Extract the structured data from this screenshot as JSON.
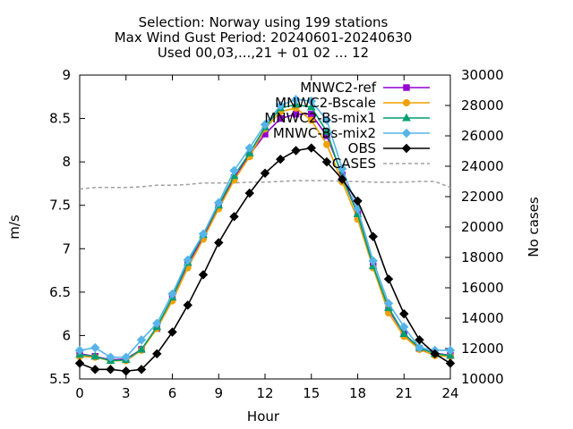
{
  "chart_data": {
    "type": "line",
    "title": [
      "Selection: Norway using   199 stations",
      "Max Wind Gust   Period: 20240601-20240630",
      "Used 00,03,...,21 + 01 02 ... 12"
    ],
    "xlabel": "Hour",
    "ylabel": "m/s",
    "y2label": "No cases",
    "xlim": [
      0,
      24
    ],
    "ylim": [
      5.5,
      9
    ],
    "y2lim": [
      10000,
      30000
    ],
    "xticks": [
      0,
      3,
      6,
      9,
      12,
      15,
      18,
      21,
      24
    ],
    "yticks": [
      5.5,
      6,
      6.5,
      7,
      7.5,
      8,
      8.5,
      9
    ],
    "y2ticks": [
      10000,
      12000,
      14000,
      16000,
      18000,
      20000,
      22000,
      24000,
      26000,
      28000,
      30000
    ],
    "x": [
      0,
      1,
      2,
      3,
      4,
      5,
      6,
      7,
      8,
      9,
      10,
      11,
      12,
      13,
      14,
      15,
      16,
      17,
      18,
      19,
      20,
      21,
      22,
      23,
      24
    ],
    "legend_position": "top-right",
    "grid": false,
    "series": [
      {
        "name": "MNWC2-ref",
        "color": "#9400d3",
        "marker": "square",
        "axis": "y",
        "values": [
          5.79,
          5.76,
          5.72,
          5.73,
          5.84,
          6.08,
          6.44,
          6.82,
          7.14,
          7.48,
          7.82,
          8.08,
          8.32,
          8.5,
          8.55,
          8.55,
          8.3,
          7.85,
          7.4,
          6.8,
          6.3,
          6.02,
          5.85,
          5.8,
          5.77
        ]
      },
      {
        "name": "MNWC2-Bscale",
        "color": "#f0a000",
        "marker": "circle",
        "axis": "y",
        "values": [
          5.76,
          5.75,
          5.71,
          5.71,
          5.83,
          6.08,
          6.4,
          6.78,
          7.11,
          7.46,
          7.79,
          8.06,
          8.38,
          8.58,
          8.62,
          8.48,
          8.2,
          7.77,
          7.34,
          6.78,
          6.26,
          5.99,
          5.84,
          5.77,
          5.76
        ]
      },
      {
        "name": "MNWC2-Bs-mix1",
        "color": "#009e73",
        "marker": "triangle",
        "axis": "y",
        "values": [
          5.78,
          5.76,
          5.71,
          5.72,
          5.84,
          6.1,
          6.44,
          6.84,
          7.16,
          7.5,
          7.84,
          8.1,
          8.4,
          8.62,
          8.66,
          8.63,
          8.35,
          7.82,
          7.4,
          6.8,
          6.32,
          6.02,
          5.86,
          5.79,
          5.77
        ]
      },
      {
        "name": "MNWC-Bs-mix2",
        "color": "#56b4e9",
        "marker": "diamond",
        "axis": "y",
        "values": [
          5.83,
          5.86,
          5.75,
          5.75,
          5.95,
          6.14,
          6.48,
          6.87,
          7.17,
          7.53,
          7.9,
          8.16,
          8.43,
          8.65,
          8.72,
          8.7,
          8.48,
          7.92,
          7.46,
          6.86,
          6.37,
          6.1,
          5.86,
          5.83,
          5.83
        ]
      },
      {
        "name": "OBS",
        "color": "#000000",
        "marker": "diamond",
        "axis": "y",
        "values": [
          5.68,
          5.61,
          5.61,
          5.59,
          5.61,
          5.79,
          6.04,
          6.35,
          6.7,
          7.07,
          7.37,
          7.64,
          7.87,
          8.03,
          8.13,
          8.16,
          8.0,
          7.8,
          7.55,
          7.14,
          6.65,
          6.25,
          5.95,
          5.79,
          5.68
        ]
      },
      {
        "name": "CASES",
        "color": "#a0a0a0",
        "dash": true,
        "axis": "y2",
        "values": [
          22500,
          22600,
          22600,
          22600,
          22650,
          22750,
          22750,
          22800,
          22900,
          22900,
          22900,
          22950,
          22950,
          23000,
          23050,
          23050,
          23050,
          23000,
          23000,
          22950,
          22950,
          22950,
          23000,
          23000,
          22600
        ]
      }
    ]
  }
}
